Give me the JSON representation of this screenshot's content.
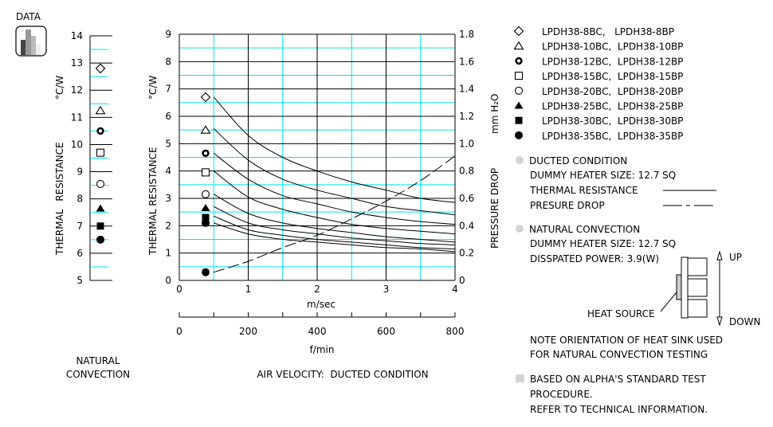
{
  "header": {
    "data_label": "DATA",
    "data_icon": "bar-chart-icon"
  },
  "colors": {
    "grid_major": "#000000",
    "grid_minor": "#00e5ee",
    "legend_bullet": "#d3d3d3"
  },
  "chart_data": [
    {
      "type": "scatter",
      "title": "",
      "ylabel": "THERMAL RESISTANCE",
      "yunit": "°C/W",
      "xlabel_lines": [
        "NATURAL",
        "CONVECTION"
      ],
      "ylim": [
        5,
        14
      ],
      "yticks": [
        5,
        6,
        7,
        8,
        9,
        10,
        11,
        12,
        13,
        14
      ],
      "points": [
        {
          "marker": "diamond-open",
          "y": 12.8
        },
        {
          "marker": "triangle-open",
          "y": 11.25
        },
        {
          "marker": "ring-bold",
          "y": 10.5
        },
        {
          "marker": "square-open",
          "y": 9.7
        },
        {
          "marker": "circle-open",
          "y": 8.55
        },
        {
          "marker": "triangle-filled",
          "y": 7.65
        },
        {
          "marker": "square-filled",
          "y": 7.0
        },
        {
          "marker": "circle-filled",
          "y": 6.5
        }
      ]
    },
    {
      "type": "line",
      "title": "AIR VELOCITY:  DUCTED CONDITION",
      "xlabel": "m/sec",
      "xlabel2": "f/min",
      "ylabel": "THERMAL RESISTANCE",
      "yunit": "°C/W",
      "y2label": "PRESSURE  DROP",
      "y2unit": "mm H₂O",
      "xlim": [
        0,
        4
      ],
      "ylim": [
        0,
        9
      ],
      "y2lim": [
        0,
        1.8
      ],
      "xticks": [
        0,
        1,
        2,
        3,
        4
      ],
      "x2ticks": [
        0,
        200,
        400,
        600,
        800
      ],
      "yticks": [
        0,
        1,
        2,
        3,
        4,
        5,
        6,
        7,
        8,
        9
      ],
      "y2ticks": [
        "0",
        "0.2",
        "0.4",
        "0.6",
        "0.8",
        "1.0",
        "1.2",
        "1.4",
        "1.6",
        "1.8"
      ],
      "grid": true,
      "x": [
        0.5,
        1,
        1.5,
        2,
        2.5,
        3,
        3.5,
        4
      ],
      "series": [
        {
          "marker": "diamond-open",
          "natural_marker_y": 6.7,
          "values": [
            6.7,
            5.3,
            4.5,
            4.0,
            3.6,
            3.3,
            3.0,
            2.85
          ]
        },
        {
          "marker": "triangle-open",
          "natural_marker_y": 5.5,
          "values": [
            5.55,
            4.4,
            3.7,
            3.3,
            3.0,
            2.7,
            2.55,
            2.4
          ]
        },
        {
          "marker": "ring-bold",
          "natural_marker_y": 4.65,
          "values": [
            4.65,
            3.7,
            3.1,
            2.8,
            2.5,
            2.3,
            2.15,
            2.05
          ]
        },
        {
          "marker": "square-open",
          "natural_marker_y": 3.95,
          "values": [
            4.0,
            3.05,
            2.6,
            2.3,
            2.05,
            1.9,
            1.8,
            1.7
          ]
        },
        {
          "marker": "circle-open",
          "natural_marker_y": 3.15,
          "values": [
            3.15,
            2.45,
            2.1,
            1.9,
            1.75,
            1.6,
            1.5,
            1.4
          ]
        },
        {
          "marker": "triangle-filled",
          "natural_marker_y": 2.65,
          "values": [
            2.7,
            2.1,
            1.85,
            1.7,
            1.55,
            1.45,
            1.35,
            1.3
          ]
        },
        {
          "marker": "square-filled",
          "natural_marker_y": 2.3,
          "values": [
            2.35,
            1.85,
            1.65,
            1.5,
            1.4,
            1.3,
            1.2,
            1.15
          ]
        },
        {
          "marker": "circle-filled",
          "natural_marker_y": 2.1,
          "values": [
            2.1,
            1.7,
            1.5,
            1.4,
            1.3,
            1.2,
            1.15,
            1.05
          ]
        }
      ],
      "pressure_drop": {
        "axis": "right",
        "style": "dashed",
        "natural_marker_y": 0.3,
        "values": [
          0.06,
          0.14,
          0.24,
          0.33,
          0.45,
          0.58,
          0.73,
          0.91
        ]
      }
    }
  ],
  "legend": {
    "items": [
      {
        "marker": "diamond-open",
        "label": "LPDH38-8BC,   LPDH38-8BP"
      },
      {
        "marker": "triangle-open",
        "label": "LPDH38-10BC,  LPDH38-10BP"
      },
      {
        "marker": "ring-bold",
        "label": "LPDH38-12BC,  LPDH38-12BP"
      },
      {
        "marker": "square-open",
        "label": "LPDH38-15BC,  LPDH38-15BP"
      },
      {
        "marker": "circle-open",
        "label": "LPDH38-20BC,  LPDH38-20BP"
      },
      {
        "marker": "triangle-filled",
        "label": "LPDH38-25BC,  LPDH38-25BP"
      },
      {
        "marker": "square-filled",
        "label": "LPDH38-30BC,  LPDH38-30BP"
      },
      {
        "marker": "circle-filled",
        "label": "LPDH38-35BC,  LPDH38-35BP"
      }
    ],
    "ducted": {
      "title": "DUCTED CONDITION",
      "heater": "DUMMY HEATER SIZE: 12.7 SQ",
      "thermal": "THERMAL RESISTANCE",
      "pressure": "PRESURE DROP"
    },
    "natural": {
      "title": "NATURAL CONVECTION",
      "heater": "DUMMY HEATER SIZE: 12.7 SQ",
      "power": "DISSPATED POWER: 3.9(W)"
    },
    "diagram": {
      "heat_source": "HEAT SOURCE",
      "up": "UP",
      "down": "DOWN"
    },
    "note": [
      "NOTE ORIENTATION OF HEAT SINK USED",
      "FOR NATURAL CONVECTION TESTING"
    ],
    "footer": [
      "BASED ON ALPHA'S STANDARD TEST",
      "PROCEDURE.",
      "REFER TO TECHNICAL INFORMATION."
    ]
  }
}
